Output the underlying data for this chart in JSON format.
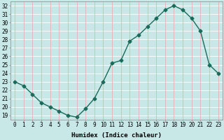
{
  "x": [
    0,
    1,
    2,
    3,
    4,
    5,
    6,
    7,
    8,
    9,
    10,
    11,
    12,
    13,
    14,
    15,
    16,
    17,
    18,
    19,
    20,
    21,
    22,
    23
  ],
  "y": [
    23,
    22.5,
    21.5,
    20.5,
    20,
    19.5,
    19,
    18.8,
    19.8,
    21,
    23,
    25.2,
    25.5,
    27.8,
    28.5,
    29.5,
    30.5,
    31.5,
    32,
    31.5,
    30.5,
    29,
    25,
    24
  ],
  "xlabel": "Humidex (Indice chaleur)",
  "xlim": [
    -0.5,
    23.5
  ],
  "ylim": [
    18.5,
    32.5
  ],
  "yticks": [
    19,
    20,
    21,
    22,
    23,
    24,
    25,
    26,
    27,
    28,
    29,
    30,
    31,
    32
  ],
  "xticks": [
    0,
    1,
    2,
    3,
    4,
    5,
    6,
    7,
    8,
    9,
    10,
    11,
    12,
    13,
    14,
    15,
    16,
    17,
    18,
    19,
    20,
    21,
    22,
    23
  ],
  "line_color": "#1a6b5a",
  "marker": "D",
  "marker_size": 2.5,
  "bg_color": "#c8e8e8",
  "grid_color_h": "#ffffff",
  "grid_color_v": "#e8b0b0",
  "label_fontsize": 6.5,
  "tick_fontsize": 5.5
}
